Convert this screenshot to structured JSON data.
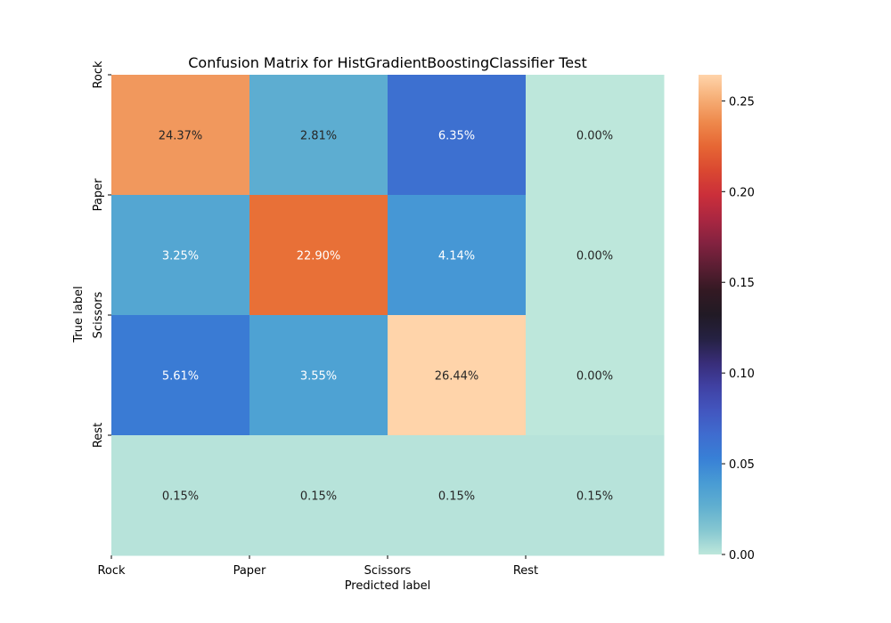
{
  "chart_data": {
    "type": "heatmap",
    "title": "Confusion Matrix for HistGradientBoostingClassifier Test",
    "xlabel": "Predicted label",
    "ylabel": "True label",
    "x_tick_labels": [
      "Rock",
      "Paper",
      "Scissors",
      "Rest"
    ],
    "y_tick_labels": [
      "Rock",
      "Paper",
      "Scissors",
      "Rest"
    ],
    "values": [
      [
        0.2437,
        0.0281,
        0.0635,
        0.0
      ],
      [
        0.0325,
        0.229,
        0.0414,
        0.0
      ],
      [
        0.0561,
        0.0355,
        0.2644,
        0.0
      ],
      [
        0.0015,
        0.0015,
        0.0015,
        0.0015
      ]
    ],
    "annotations": [
      [
        "24.37%",
        "2.81%",
        "6.35%",
        "0.00%"
      ],
      [
        "3.25%",
        "22.90%",
        "4.14%",
        "0.00%"
      ],
      [
        "5.61%",
        "3.55%",
        "26.44%",
        "0.00%"
      ],
      [
        "0.15%",
        "0.15%",
        "0.15%",
        "0.15%"
      ]
    ],
    "colorbar": {
      "range": [
        0.0,
        0.2644
      ],
      "ticks": [
        "0.00",
        "0.05",
        "0.10",
        "0.15",
        "0.20",
        "0.25"
      ],
      "tick_values": [
        0.0,
        0.05,
        0.1,
        0.15,
        0.2,
        0.25
      ],
      "colormap": "icefire"
    }
  }
}
